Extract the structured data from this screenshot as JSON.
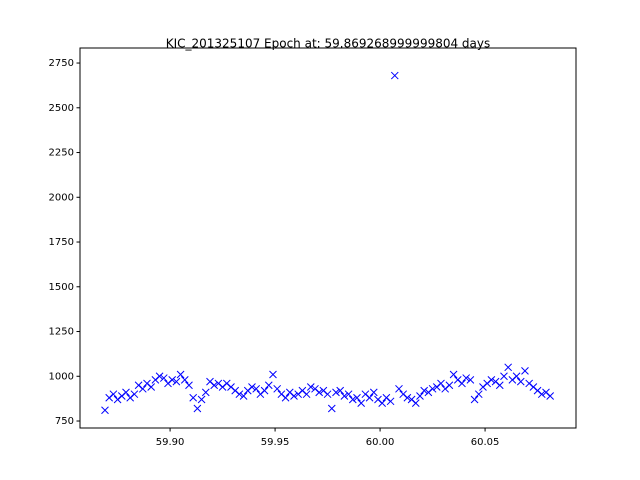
{
  "chart_data": {
    "type": "scatter",
    "title": "KIC_201325107 Epoch at: 59.869268999999804 days",
    "marker": "x",
    "color": "#0000ff",
    "xlim": [
      59.8571,
      60.0933
    ],
    "ylim": [
      711,
      2834
    ],
    "xticks": [
      {
        "value": 59.9,
        "label": "59.90"
      },
      {
        "value": 59.95,
        "label": "59.95"
      },
      {
        "value": 60.0,
        "label": "60.00"
      },
      {
        "value": 60.05,
        "label": "60.05"
      }
    ],
    "yticks": [
      750,
      1000,
      1250,
      1500,
      1750,
      2000,
      2250,
      2500,
      2750
    ],
    "x": [
      59.869,
      59.871,
      59.873,
      59.875,
      59.877,
      59.879,
      59.881,
      59.883,
      59.885,
      59.887,
      59.889,
      59.891,
      59.893,
      59.895,
      59.897,
      59.899,
      59.901,
      59.903,
      59.905,
      59.907,
      59.909,
      59.911,
      59.913,
      59.915,
      59.917,
      59.919,
      59.921,
      59.923,
      59.925,
      59.927,
      59.929,
      59.931,
      59.933,
      59.935,
      59.937,
      59.939,
      59.941,
      59.943,
      59.945,
      59.947,
      59.949,
      59.951,
      59.953,
      59.955,
      59.957,
      59.959,
      59.961,
      59.963,
      59.965,
      59.967,
      59.969,
      59.971,
      59.973,
      59.975,
      59.977,
      59.979,
      59.981,
      59.983,
      59.985,
      59.987,
      59.989,
      59.991,
      59.993,
      59.995,
      59.997,
      59.999,
      60.001,
      60.003,
      60.005,
      60.007,
      60.009,
      60.011,
      60.013,
      60.015,
      60.017,
      60.019,
      60.021,
      60.023,
      60.025,
      60.027,
      60.029,
      60.031,
      60.033,
      60.035,
      60.037,
      60.039,
      60.041,
      60.043,
      60.045,
      60.047,
      60.049,
      60.051,
      60.053,
      60.055,
      60.057,
      60.059,
      60.061,
      60.063,
      60.065,
      60.067,
      60.069,
      60.071,
      60.073,
      60.075,
      60.077,
      60.079,
      60.081
    ],
    "values": [
      810,
      880,
      900,
      870,
      890,
      910,
      880,
      900,
      950,
      930,
      960,
      940,
      980,
      1000,
      990,
      960,
      980,
      970,
      1010,
      980,
      950,
      880,
      820,
      870,
      910,
      970,
      950,
      960,
      940,
      960,
      940,
      920,
      900,
      890,
      920,
      940,
      930,
      900,
      920,
      950,
      1010,
      930,
      900,
      880,
      910,
      890,
      900,
      920,
      900,
      940,
      930,
      910,
      920,
      900,
      820,
      910,
      920,
      890,
      900,
      870,
      880,
      850,
      900,
      880,
      910,
      870,
      850,
      880,
      860,
      2680,
      930,
      900,
      880,
      870,
      850,
      890,
      920,
      910,
      930,
      940,
      960,
      930,
      950,
      1010,
      980,
      960,
      990,
      980,
      870,
      900,
      940,
      960,
      980,
      970,
      950,
      1000,
      1050,
      980,
      1000,
      970,
      1030,
      960,
      940,
      920,
      900,
      910,
      890
    ]
  }
}
